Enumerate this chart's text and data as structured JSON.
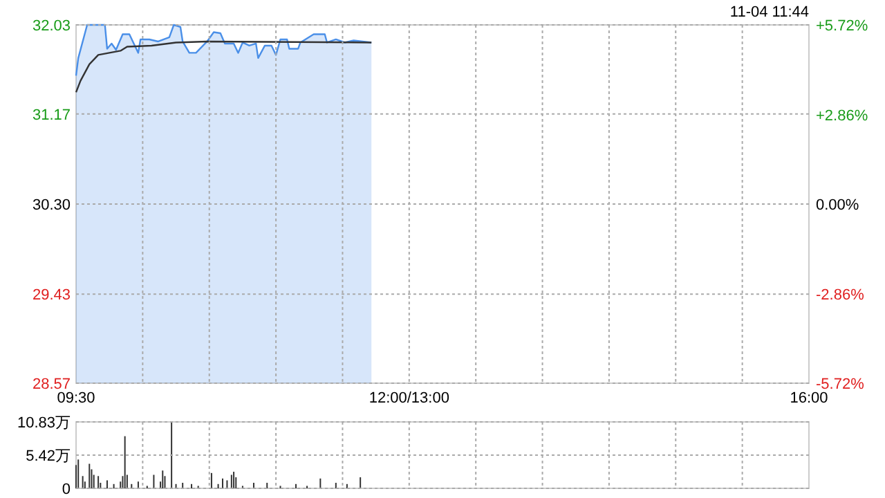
{
  "chart_data": [
    {
      "type": "line",
      "categories": [
        "09:30",
        null,
        null,
        null,
        null,
        null,
        null,
        null,
        null,
        null,
        null,
        null,
        null,
        null,
        null,
        null,
        null,
        null,
        null,
        null,
        null,
        null,
        null,
        null,
        null,
        null,
        null,
        null,
        null,
        null,
        null,
        null,
        null,
        null,
        null,
        null,
        null,
        null,
        null,
        null,
        null,
        null,
        null,
        null,
        null,
        null,
        null,
        null,
        null,
        null,
        null,
        null,
        null,
        null,
        null,
        null,
        null,
        null,
        null,
        null,
        null,
        null,
        null,
        null,
        null,
        null,
        null,
        null,
        null,
        null,
        null,
        null,
        null,
        null,
        null,
        null,
        null,
        null,
        null,
        null,
        null,
        null,
        null,
        null,
        null,
        null,
        null,
        null,
        null,
        null,
        null,
        null,
        null,
        null,
        null,
        null,
        null,
        null,
        null,
        null,
        null,
        null,
        null,
        null,
        null,
        null,
        null,
        null,
        null,
        null,
        null,
        null,
        null,
        null,
        null,
        null,
        null,
        null,
        null,
        null,
        null,
        null,
        null,
        null,
        null,
        null,
        null,
        null,
        null,
        null,
        null,
        null,
        null,
        null,
        null,
        null,
        null,
        null,
        null,
        null,
        null,
        null,
        null,
        null,
        null,
        null,
        null,
        null,
        null,
        null,
        "12:00/13:00",
        null,
        null,
        null,
        null,
        null,
        null,
        null,
        null,
        null,
        null,
        null,
        null,
        null,
        null,
        null,
        null,
        null,
        null,
        null,
        null,
        null,
        null,
        null,
        null,
        null,
        null,
        null,
        null,
        null,
        null,
        null,
        null,
        null,
        null,
        null,
        null,
        null,
        null,
        null,
        null,
        null,
        null,
        null,
        null,
        null,
        null,
        null,
        null,
        null,
        null,
        null,
        null,
        null,
        null,
        null,
        null,
        null,
        null,
        null,
        null,
        null,
        null,
        null,
        null,
        null,
        null,
        null,
        null,
        null,
        null,
        null,
        null,
        null,
        null,
        null,
        null,
        null,
        null,
        null,
        null,
        null,
        null,
        null,
        null,
        null,
        null,
        null,
        null,
        null,
        null,
        null,
        null,
        null,
        null,
        null,
        null,
        null,
        null,
        null,
        null,
        null,
        null,
        null,
        null,
        null,
        null,
        null,
        null,
        null,
        null,
        null,
        null,
        null,
        null,
        null,
        null,
        null,
        null,
        null,
        null,
        null,
        null,
        null,
        null,
        null,
        null,
        null,
        null,
        null,
        null,
        null,
        null,
        null,
        null,
        null,
        null,
        null,
        null,
        null,
        null,
        null,
        null,
        null,
        null,
        null,
        null,
        null,
        null,
        null,
        null,
        null,
        null,
        null,
        null,
        null,
        null,
        null,
        null,
        null,
        null,
        null,
        null,
        null,
        null,
        null,
        null,
        null,
        null,
        null,
        null,
        null,
        null,
        null,
        null,
        null,
        null,
        null,
        null,
        null,
        "16:00"
      ],
      "ylim": [
        28.57,
        32.03
      ],
      "yticks": [
        28.57,
        29.43,
        {
          "value": 30.3,
          "label": "30.30"
        },
        31.17,
        32.03
      ],
      "y2lim": [
        -5.72,
        5.72
      ],
      "y2ticks": [
        {
          "value": -5.72,
          "label": "-5.72%"
        },
        {
          "value": -2.86,
          "label": "-2.86%"
        },
        {
          "value": 0,
          "label": "0.00%"
        },
        {
          "value": 2.86,
          "label": "+2.86%"
        },
        {
          "value": 5.72,
          "label": "+5.72%"
        }
      ],
      "grid": true,
      "annotations": [
        "11-04 11:44"
      ],
      "series": [
        {
          "type": "area",
          "color": "#4a8fe8",
          "values": [
            31.54,
            31.71,
            null,
            null,
            null,
            32.03,
            null,
            null,
            null,
            32.03,
            null,
            null,
            null,
            32.03,
            31.8,
            null,
            31.85,
            null,
            31.79,
            null,
            null,
            31.94,
            null,
            null,
            31.94,
            null,
            31.85,
            null,
            31.76,
            31.89,
            null,
            null,
            null,
            31.89,
            null,
            null,
            null,
            31.87,
            null,
            null,
            null,
            null,
            31.91,
            null,
            32.03,
            null,
            null,
            32.01,
            31.87,
            null,
            null,
            31.76,
            null,
            null,
            31.76,
            null,
            null,
            null,
            null,
            31.87,
            null,
            null,
            31.96,
            null,
            null,
            31.95,
            null,
            31.85,
            null,
            null,
            null,
            31.85,
            null,
            31.76,
            null,
            31.86,
            null,
            null,
            31.83,
            null,
            null,
            31.85,
            31.71,
            null,
            null,
            31.83,
            null,
            null,
            31.83,
            null,
            31.74,
            null,
            31.89,
            null,
            null,
            31.89,
            31.8,
            null,
            null,
            null,
            31.8,
            31.86,
            null,
            null,
            null,
            null,
            null,
            31.94,
            null,
            null,
            null,
            null,
            31.94,
            31.86,
            null,
            null,
            null,
            31.89,
            null,
            null,
            null,
            31.86,
            null,
            null,
            null,
            31.88,
            null,
            null,
            null,
            null,
            null,
            null,
            null,
            31.86,
            null,
            null,
            null,
            null,
            null,
            null,
            null,
            null,
            null,
            null,
            null,
            null,
            null,
            null,
            null,
            null,
            null,
            null,
            null,
            null,
            null,
            null,
            null,
            null,
            null,
            null,
            null,
            null,
            null,
            null,
            null,
            null,
            null,
            null,
            null,
            null,
            null,
            null,
            null,
            null,
            null,
            null,
            null,
            null,
            null,
            null,
            null,
            null,
            null,
            null,
            null,
            null,
            null,
            null,
            null,
            null,
            null,
            null,
            null,
            null,
            null,
            null,
            null,
            null,
            null,
            null,
            null,
            null,
            null,
            null,
            null,
            null,
            null,
            null,
            null,
            null,
            null,
            null,
            null,
            null,
            null,
            null,
            null,
            null,
            null,
            null,
            null,
            null,
            null,
            null,
            null,
            null,
            null,
            null,
            null,
            null,
            null,
            null,
            null,
            null,
            null,
            null,
            null,
            null,
            null,
            null,
            null,
            null,
            null,
            null,
            null,
            null,
            null,
            null,
            null,
            null,
            null,
            null,
            null,
            null,
            null,
            null,
            null,
            null,
            null,
            null,
            null,
            null,
            null,
            null,
            null,
            null,
            null,
            null,
            null,
            null,
            null,
            null,
            null,
            null,
            null,
            null,
            null,
            null,
            null,
            null,
            null,
            null,
            null,
            null,
            null,
            null,
            null,
            null,
            null,
            null,
            null,
            null,
            null,
            null,
            null,
            null,
            null,
            null,
            null,
            null,
            null,
            null,
            null,
            null,
            null,
            null,
            null,
            null,
            null,
            null,
            null,
            null,
            null,
            null,
            null,
            null,
            null,
            null,
            null,
            null,
            null,
            null,
            null,
            null,
            null,
            null,
            null,
            null,
            null,
            null,
            null
          ]
        },
        {
          "color": "#333333",
          "values": [
            31.38,
            null,
            31.49,
            null,
            null,
            null,
            31.65,
            null,
            null,
            null,
            31.74,
            null,
            null,
            null,
            null,
            null,
            null,
            null,
            null,
            null,
            31.78,
            null,
            null,
            31.82,
            null,
            null,
            null,
            null,
            null,
            null,
            null,
            null,
            null,
            null,
            31.83,
            null,
            null,
            null,
            null,
            null,
            null,
            null,
            null,
            null,
            null,
            31.86,
            null,
            null,
            null,
            null,
            null,
            null,
            null,
            null,
            null,
            null,
            null,
            null,
            null,
            31.87,
            null,
            null,
            null,
            null,
            null,
            null,
            null,
            null,
            null,
            null,
            null,
            null,
            null,
            null,
            null,
            null,
            null,
            null,
            null,
            null,
            null,
            null,
            null,
            null,
            null,
            null,
            null,
            null,
            null,
            null,
            null,
            null,
            null,
            null,
            null,
            null,
            null,
            null,
            null,
            null,
            null,
            null,
            null,
            null,
            null,
            null,
            null,
            null,
            null,
            null,
            null,
            null,
            null,
            null,
            null,
            null,
            null,
            null,
            null,
            null,
            null,
            null,
            null,
            null,
            null,
            null,
            null,
            null,
            null,
            null,
            null,
            null,
            null,
            31.86,
            null,
            null,
            null,
            null,
            null,
            null,
            null,
            null,
            null,
            null,
            null,
            null,
            null,
            null,
            null,
            null,
            null,
            null,
            null,
            null,
            null,
            null,
            null,
            null,
            null,
            null,
            null,
            null,
            null,
            null,
            null,
            null,
            null,
            null,
            null,
            null,
            null,
            null,
            null,
            null,
            null,
            null,
            null,
            null,
            null,
            null,
            null,
            null,
            null,
            null,
            null,
            null,
            null,
            null,
            null,
            null,
            null,
            null,
            null,
            null,
            null,
            null,
            null,
            null,
            null,
            null,
            null,
            null,
            null,
            null,
            null,
            null,
            null,
            null,
            null,
            null,
            null,
            null,
            null,
            null,
            null,
            null,
            null,
            null,
            null,
            null,
            null,
            null,
            null,
            null,
            null,
            null,
            null,
            null,
            null,
            null,
            null,
            null,
            null,
            null,
            null,
            null,
            null,
            null,
            null,
            null,
            null,
            null,
            null,
            null,
            null,
            null,
            null,
            null,
            null,
            null,
            null,
            null,
            null,
            null,
            null,
            null,
            null,
            null,
            null,
            null,
            null,
            null,
            null,
            null,
            null,
            null,
            null,
            null,
            null,
            null,
            null,
            null,
            null,
            null,
            null,
            null,
            null,
            null,
            null,
            null,
            null,
            null,
            null,
            null,
            null,
            null,
            null,
            null,
            null,
            null,
            null,
            null,
            null,
            null,
            null,
            null,
            null,
            null,
            null,
            null,
            null,
            null,
            null,
            null,
            null,
            null,
            null,
            null,
            null,
            null,
            null,
            null,
            null,
            null,
            null,
            null,
            null,
            null,
            null,
            null,
            null,
            null,
            null,
            null,
            null,
            null,
            null,
            null,
            null,
            null,
            null
          ]
        }
      ]
    },
    {
      "type": "bar",
      "color": "#333333",
      "categories": [
        null,
        null,
        null,
        null,
        null,
        null,
        null,
        null,
        null,
        null,
        null,
        null,
        null,
        null,
        null,
        null,
        null,
        null,
        null,
        null,
        null,
        null,
        null,
        null,
        null,
        null,
        null,
        null,
        null,
        null,
        null,
        null,
        null,
        null,
        null,
        null,
        null,
        null,
        null,
        null,
        null,
        null,
        null,
        null,
        null,
        null,
        null,
        null,
        null,
        null,
        null,
        null,
        null,
        null,
        null,
        null,
        null,
        null,
        null,
        null,
        null,
        null,
        null,
        null,
        null,
        null,
        null,
        null,
        null,
        null,
        null,
        null,
        null,
        null,
        null,
        null,
        null,
        null,
        null,
        null,
        null,
        null,
        null,
        null,
        null,
        null,
        null,
        null,
        null,
        null,
        null,
        null,
        null,
        null,
        null,
        null,
        null,
        null,
        null,
        null,
        null,
        null,
        null,
        null,
        null,
        null,
        null,
        null,
        null,
        null,
        null,
        null,
        null,
        null,
        null,
        null,
        null,
        null,
        null,
        null,
        null,
        null,
        null,
        null,
        null,
        null,
        null,
        null,
        null,
        null,
        null,
        null,
        null,
        null,
        null,
        null,
        null,
        null,
        null,
        null,
        null,
        null,
        null,
        null,
        null,
        null,
        null,
        null,
        null,
        null,
        null,
        null,
        null,
        null,
        null,
        null,
        null,
        null,
        null,
        null,
        null,
        null,
        null,
        null,
        null,
        null,
        null,
        null,
        null,
        null,
        null,
        null,
        null,
        null,
        null,
        null,
        null,
        null,
        null,
        null,
        null,
        null,
        null,
        null,
        null,
        null,
        null,
        null,
        null,
        null,
        null,
        null,
        null,
        null,
        null,
        null,
        null,
        null,
        null,
        null,
        null,
        null,
        null,
        null,
        null,
        null,
        null,
        null,
        null,
        null,
        null,
        null,
        null,
        null,
        null,
        null,
        null,
        null,
        null,
        null,
        null,
        null,
        null,
        null,
        null,
        null,
        null,
        null,
        null,
        null,
        null,
        null,
        null,
        null,
        null,
        null,
        null,
        null,
        null,
        null,
        null,
        null,
        null,
        null,
        null,
        null,
        null,
        null,
        null,
        null,
        null,
        null,
        null,
        null,
        null,
        null,
        null,
        null,
        null,
        null,
        null,
        null,
        null,
        null,
        null,
        null,
        null,
        null,
        null,
        null,
        null,
        null,
        null,
        null,
        null,
        null,
        null,
        null,
        null,
        null,
        null,
        null,
        null,
        null,
        null,
        null,
        null,
        null,
        null,
        null,
        null,
        null,
        null,
        null,
        null,
        null,
        null,
        null,
        null,
        null,
        null,
        null,
        null,
        null,
        null,
        null,
        null,
        null,
        null,
        null,
        null,
        null,
        null,
        null,
        null,
        null,
        null,
        null,
        null,
        null,
        null,
        null,
        null,
        null,
        null,
        null,
        null,
        null,
        null,
        null,
        null
      ],
      "ylim": [
        0,
        10.83
      ],
      "yticks": [
        0,
        {
          "value": 5.42,
          "label": "5.42万"
        },
        {
          "value": 10.83,
          "label": "10.83万"
        }
      ],
      "grid": true,
      "tick_labels": "y",
      "values": [
        3.8,
        4.7,
        null,
        2.0,
        1.1,
        null,
        4.0,
        3.1,
        2.2,
        null,
        2.0,
        0.9,
        null,
        null,
        1.3,
        null,
        null,
        0.7,
        null,
        null,
        1.1,
        2.0,
        8.5,
        2.2,
        null,
        0.7,
        null,
        null,
        1.1,
        null,
        null,
        null,
        0.4,
        null,
        null,
        2.2,
        null,
        null,
        1.1,
        2.9,
        2.0,
        null,
        null,
        10.8,
        null,
        0.7,
        null,
        null,
        0.9,
        null,
        null,
        null,
        0.7,
        null,
        null,
        0.4,
        null,
        null,
        null,
        null,
        null,
        2.5,
        null,
        null,
        0.7,
        null,
        1.6,
        null,
        1.3,
        null,
        2.2,
        2.7,
        1.8,
        null,
        null,
        0.4,
        null,
        null,
        null,
        null,
        0.9,
        null,
        null,
        null,
        null,
        null,
        0.9,
        null,
        null,
        null,
        null,
        null,
        0.4,
        null,
        null,
        null,
        null,
        null,
        null,
        0.7,
        null,
        null,
        null,
        null,
        0.4,
        null,
        null,
        null,
        null,
        null,
        1.6,
        null,
        null,
        null,
        null,
        null,
        null,
        0.9,
        null,
        null,
        null,
        null,
        0.7,
        null,
        null,
        null,
        null,
        null,
        1.8,
        null,
        null,
        null,
        null,
        null,
        null,
        null,
        null,
        null,
        null,
        null,
        null,
        null,
        null,
        null,
        null,
        null,
        null,
        null,
        null,
        null,
        null,
        null,
        null,
        null,
        null,
        null,
        null,
        null,
        null,
        null,
        null,
        null,
        null,
        null,
        null,
        null,
        null,
        null,
        null,
        null,
        null,
        null,
        null,
        null,
        null,
        null,
        null,
        null,
        null,
        null,
        null,
        null,
        null,
        null,
        null,
        null,
        null,
        null,
        null,
        null,
        null,
        null,
        null,
        null,
        null,
        null,
        null,
        null,
        null,
        null,
        null,
        null,
        null,
        null,
        null,
        null,
        null,
        null,
        null,
        null,
        null,
        null,
        null,
        null,
        null,
        null,
        null,
        null,
        null,
        null,
        null,
        null,
        null,
        null,
        null,
        null,
        null,
        null,
        null,
        null,
        null,
        null,
        null,
        null,
        null,
        null,
        null,
        null,
        null,
        null,
        null,
        null,
        null,
        null,
        null,
        null,
        null,
        null,
        null,
        null,
        null,
        null,
        null,
        null,
        null,
        null,
        null,
        null,
        null,
        null,
        null,
        null,
        null,
        null,
        null,
        null,
        null,
        null,
        null,
        null,
        null,
        null,
        null,
        null,
        null,
        null,
        null,
        null,
        null,
        null,
        null,
        null,
        null,
        null,
        null,
        null,
        null,
        null,
        null,
        null,
        null,
        null,
        null,
        null,
        null,
        null,
        null,
        null,
        null,
        null,
        null,
        null,
        null,
        null,
        null,
        null,
        null,
        null,
        null,
        null,
        null,
        null,
        null,
        null,
        null,
        null,
        null,
        null,
        null,
        null,
        null,
        null,
        null,
        null,
        null,
        null,
        null,
        null,
        null,
        null,
        null
      ]
    }
  ]
}
